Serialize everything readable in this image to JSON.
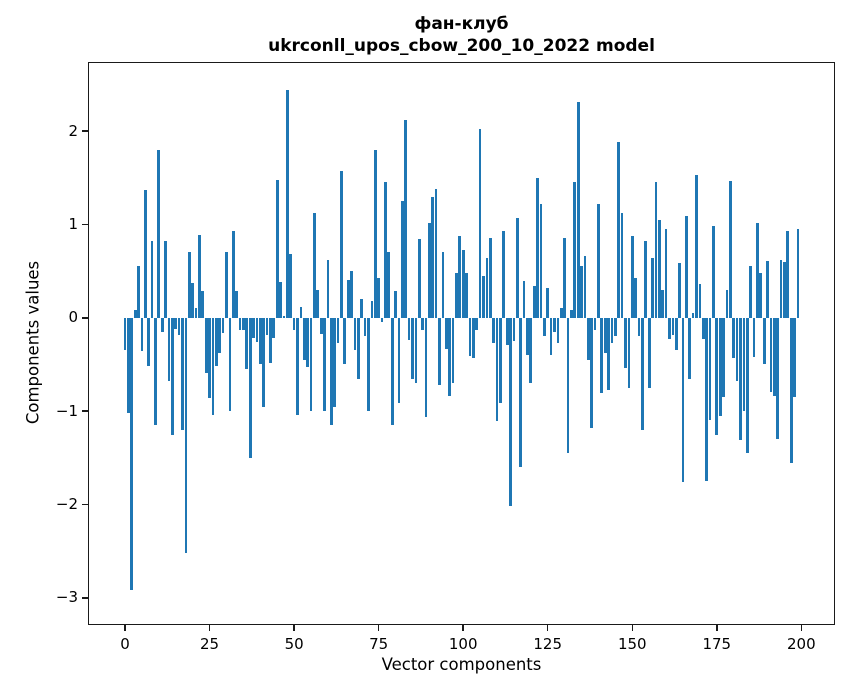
{
  "figure": {
    "title_line1": "фан-клуб",
    "title_line2": "ukrconll_upos_cbow_200_10_2022 model",
    "xlabel": "Vector components",
    "ylabel": "Components values"
  },
  "chart_data": {
    "type": "bar",
    "title": "фан-клуб",
    "subtitle": "ukrconll_upos_cbow_200_10_2022 model",
    "xlabel": "Vector components",
    "ylabel": "Components values",
    "bar_color": "#1f77b4",
    "grid": false,
    "legend_position": "none",
    "n_components": 200,
    "xlim": [
      -10.95,
      209.95
    ],
    "ylim": [
      -3.29,
      2.74
    ],
    "xticks": [
      0,
      25,
      50,
      75,
      100,
      125,
      150,
      175,
      200
    ],
    "yticks": [
      2,
      1,
      0,
      -1,
      -2,
      -3
    ],
    "bar_width": 0.8,
    "values": [
      -0.35,
      -1.02,
      -2.92,
      0.08,
      0.56,
      -0.36,
      1.37,
      -0.52,
      0.82,
      -1.15,
      1.8,
      -0.15,
      0.82,
      -0.68,
      -1.25,
      -0.12,
      -0.18,
      -1.2,
      -2.52,
      0.71,
      0.37,
      0.11,
      0.89,
      0.29,
      -0.59,
      -0.86,
      -1.04,
      -0.52,
      -0.38,
      -0.16,
      0.7,
      -1.0,
      0.93,
      0.29,
      -0.13,
      -0.13,
      -0.55,
      -1.5,
      -0.22,
      -0.26,
      -0.5,
      -0.96,
      -0.18,
      -0.48,
      -0.22,
      1.48,
      0.38,
      0.02,
      2.44,
      0.68,
      -0.13,
      -1.04,
      0.12,
      -0.45,
      -0.53,
      -1.0,
      1.12,
      0.3,
      -0.17,
      -1.0,
      0.62,
      -1.15,
      -0.95,
      -0.27,
      1.57,
      -0.5,
      0.41,
      0.5,
      -0.35,
      -0.65,
      0.2,
      -0.2,
      -1.0,
      0.18,
      1.8,
      0.43,
      -0.05,
      1.45,
      0.71,
      -1.15,
      0.29,
      -0.91,
      1.25,
      2.12,
      -0.24,
      -0.65,
      -0.7,
      0.84,
      -0.13,
      -1.06,
      1.02,
      1.29,
      1.38,
      -0.72,
      0.71,
      -0.33,
      -0.84,
      -0.7,
      0.48,
      0.88,
      0.73,
      0.48,
      -0.41,
      -0.43,
      -0.13,
      2.02,
      0.45,
      0.64,
      0.86,
      -0.27,
      -1.1,
      -0.91,
      0.93,
      -0.29,
      -2.02,
      -0.25,
      1.07,
      -1.6,
      0.39,
      -0.4,
      -0.7,
      0.34,
      1.5,
      1.22,
      -0.2,
      0.32,
      -0.4,
      -0.15,
      -0.27,
      0.1,
      0.85,
      -1.45,
      0.08,
      1.45,
      2.31,
      0.55,
      0.66,
      -0.45,
      -1.18,
      -0.13,
      1.22,
      -0.81,
      -0.38,
      -0.77,
      -0.27,
      -0.2,
      1.88,
      1.12,
      -0.54,
      -0.75,
      0.88,
      0.43,
      -0.2,
      -1.2,
      0.82,
      -0.75,
      0.64,
      1.45,
      1.05,
      0.3,
      0.95,
      -0.23,
      -0.18,
      -0.34,
      0.59,
      -1.76,
      1.09,
      -0.65,
      0.05,
      1.53,
      0.36,
      -0.23,
      -1.75,
      -1.09,
      0.98,
      -1.25,
      -1.05,
      -0.85,
      0.3,
      1.47,
      -0.43,
      -0.68,
      -1.31,
      -1.0,
      -1.45,
      0.55,
      -0.42,
      1.02,
      0.48,
      -0.5,
      0.61,
      -0.79,
      -0.84,
      -1.3,
      0.62,
      0.6,
      0.93,
      -1.55,
      -0.85,
      0.95
    ]
  }
}
